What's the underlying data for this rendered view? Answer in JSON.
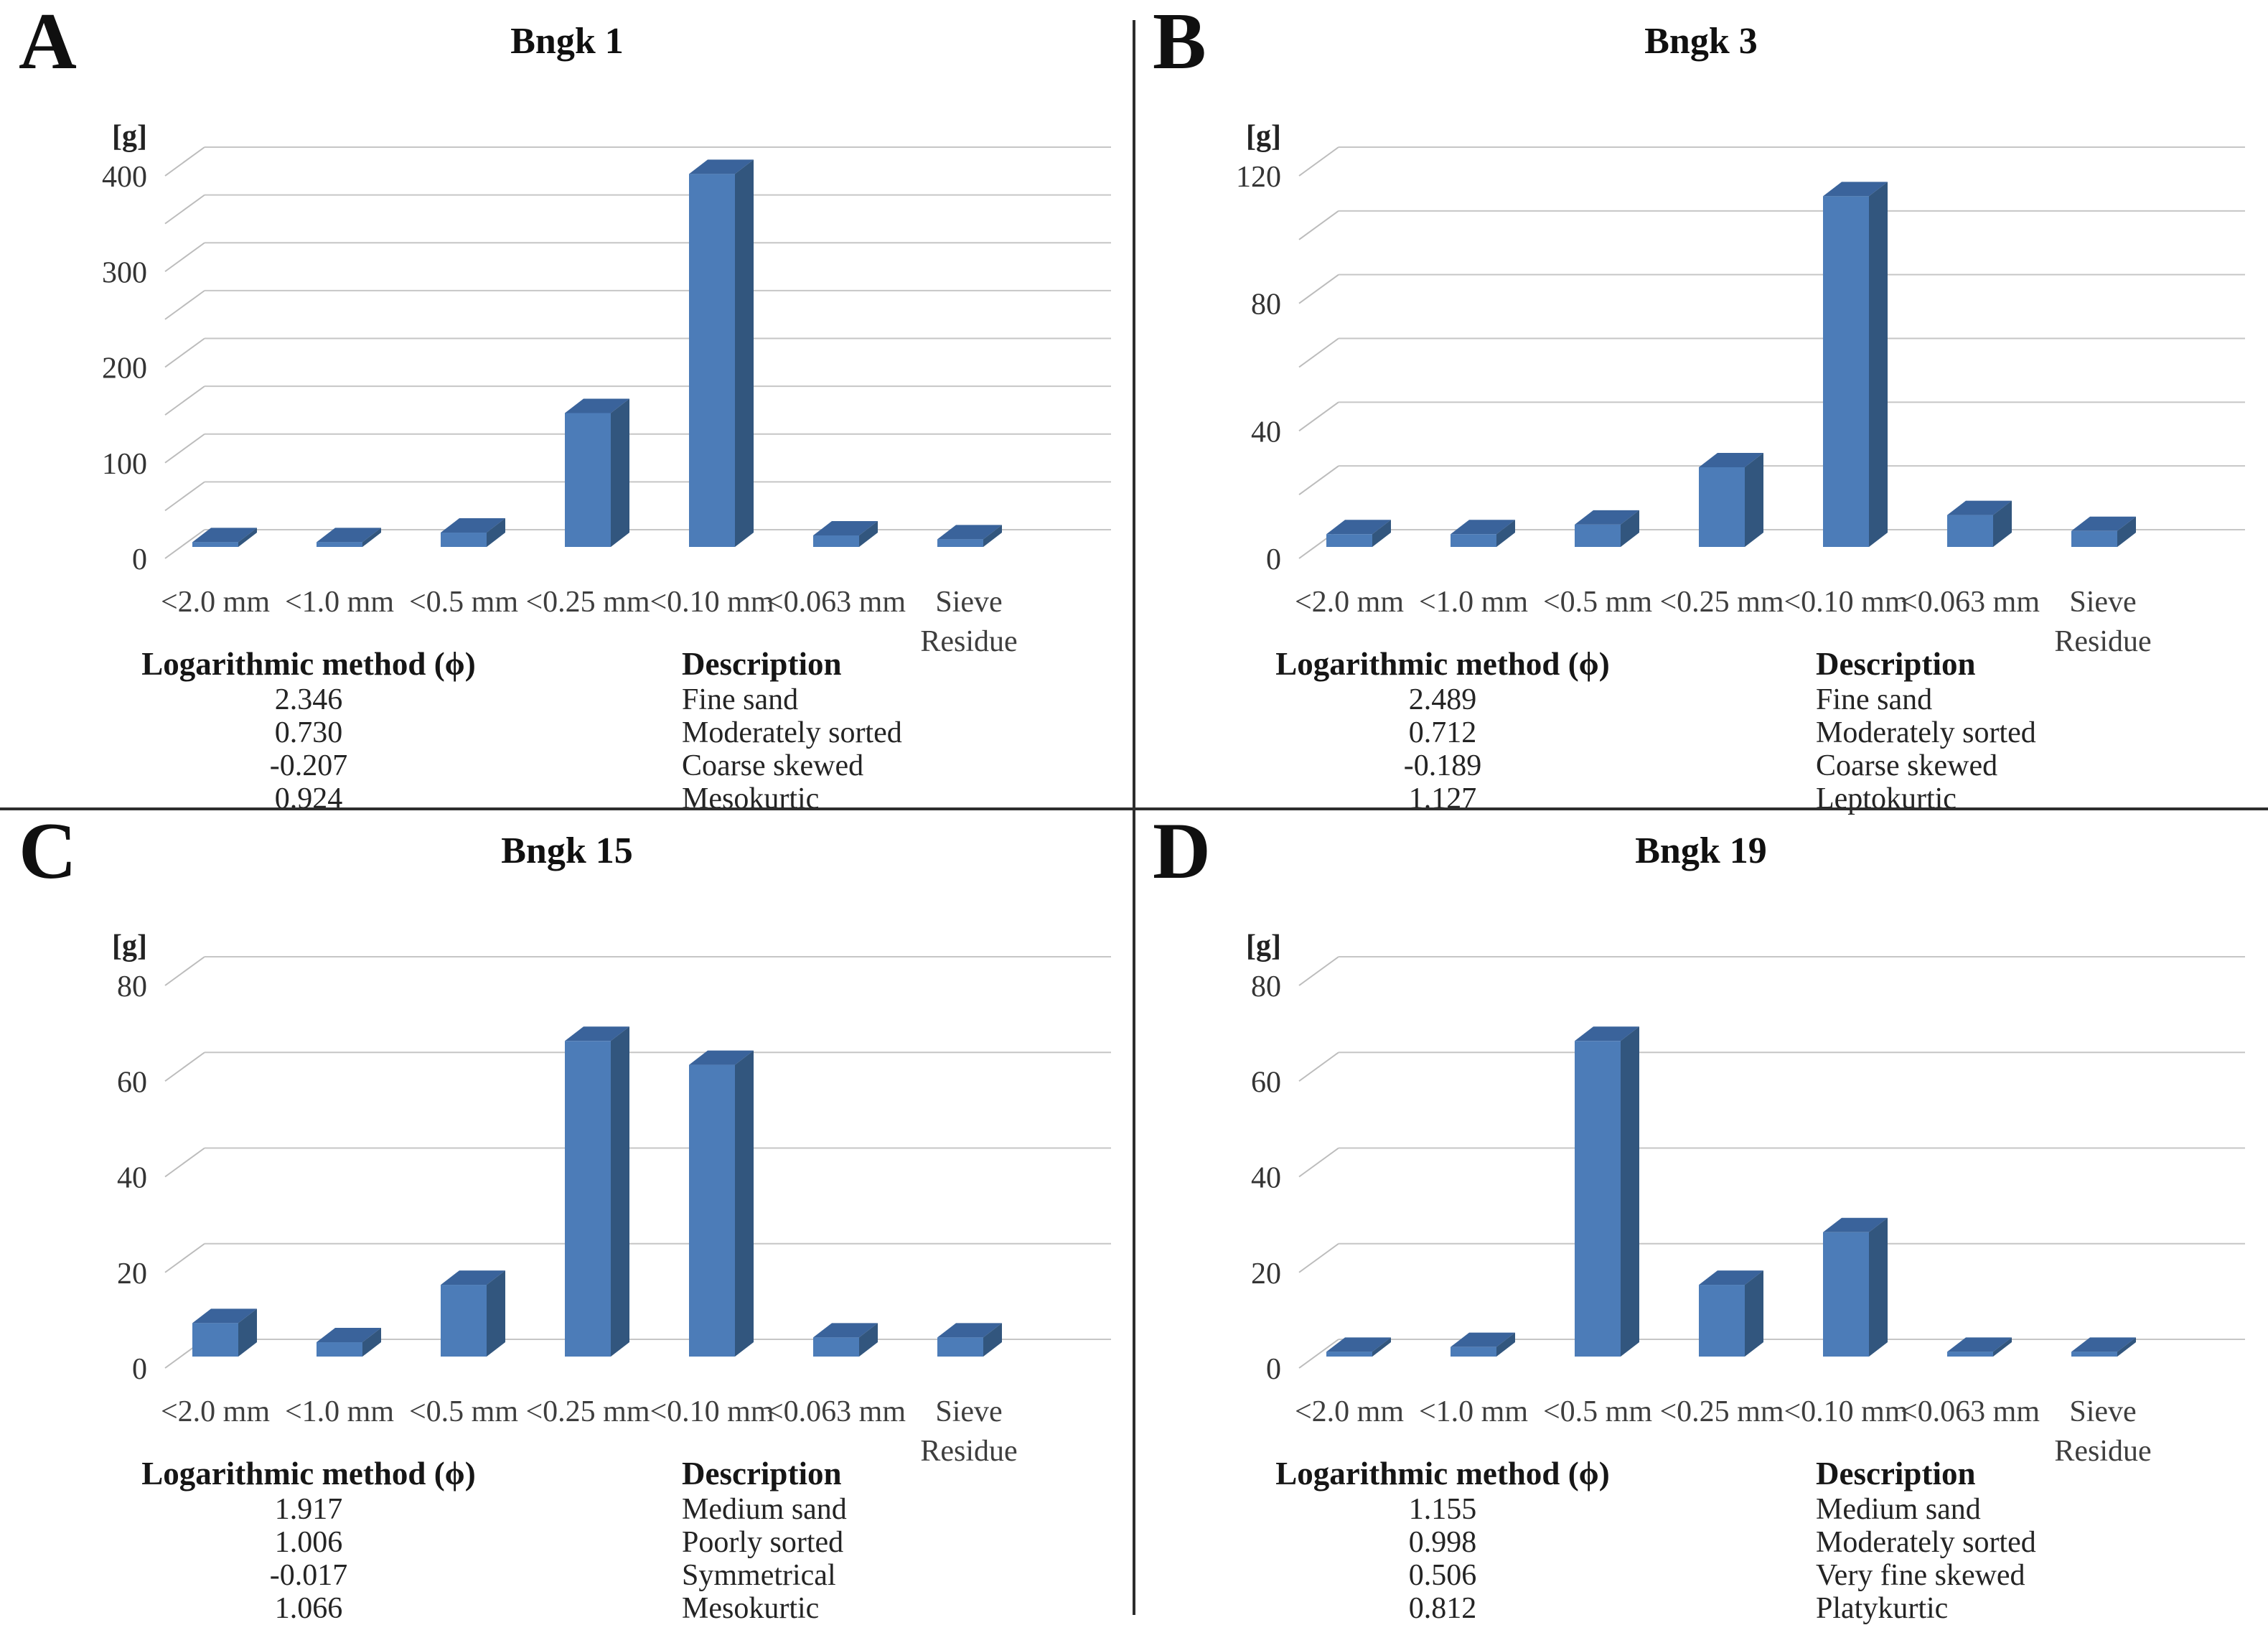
{
  "figure_label": "Grain size distribution panels",
  "colors": {
    "bar_front": "#4c7cb8",
    "bar_top": "#3a639b",
    "bar_side": "#32567e",
    "gridline": "#c6c6c6",
    "grid_diagonal": "#bcbcbc",
    "divider": "#2d2d2d"
  },
  "chart_data": [
    {
      "type": "bar",
      "panel": "A",
      "title": "Bngk 1",
      "ylabel": "[g]",
      "categories": [
        "<2.0 mm",
        "<1.0 mm",
        "<0.5 mm",
        "<0.25 mm",
        "<0.10 mm",
        "<0.063 mm",
        "Sieve Residue"
      ],
      "values": [
        5,
        5,
        15,
        140,
        390,
        12,
        8
      ],
      "ylim": [
        0,
        400
      ],
      "grid_step": 50,
      "label_step": 100,
      "tick_labels": [
        "0",
        "100",
        "200",
        "300",
        "400"
      ],
      "legend": "none",
      "grid": "on",
      "stats": {
        "method_label": "Logarithmic method (ϕ)",
        "description_label": "Description",
        "values": [
          "2.346",
          "0.730",
          "-0.207",
          "0.924"
        ],
        "descriptions": [
          "Fine sand",
          "Moderately sorted",
          "Coarse skewed",
          "Mesokurtic"
        ]
      }
    },
    {
      "type": "bar",
      "panel": "B",
      "title": "Bngk 3",
      "ylabel": "[g]",
      "categories": [
        "<2.0 mm",
        "<1.0 mm",
        "<0.5 mm",
        "<0.25 mm",
        "<0.10 mm",
        "<0.063 mm",
        "Sieve Residue"
      ],
      "values": [
        4,
        4,
        7,
        25,
        110,
        10,
        5
      ],
      "ylim": [
        0,
        120
      ],
      "grid_step": 20,
      "label_step": 40,
      "tick_labels": [
        "0",
        "40",
        "80",
        "120"
      ],
      "legend": "none",
      "grid": "on",
      "stats": {
        "method_label": "Logarithmic method (ϕ)",
        "description_label": "Description",
        "values": [
          "2.489",
          "0.712",
          "-0.189",
          "1.127"
        ],
        "descriptions": [
          "Fine sand",
          "Moderately sorted",
          "Coarse skewed",
          "Leptokurtic"
        ]
      }
    },
    {
      "type": "bar",
      "panel": "C",
      "title": "Bngk 15",
      "ylabel": "[g]",
      "categories": [
        "<2.0 mm",
        "<1.0 mm",
        "<0.5 mm",
        "<0.25 mm",
        "<0.10 mm",
        "<0.063 mm",
        "Sieve Residue"
      ],
      "values": [
        7,
        3,
        15,
        66,
        61,
        4,
        4
      ],
      "ylim": [
        0,
        80
      ],
      "grid_step": 20,
      "label_step": 20,
      "tick_labels": [
        "0",
        "20",
        "40",
        "60",
        "80"
      ],
      "legend": "none",
      "grid": "on",
      "stats": {
        "method_label": "Logarithmic method (ϕ)",
        "description_label": "Description",
        "values": [
          "1.917",
          "1.006",
          "-0.017",
          "1.066"
        ],
        "descriptions": [
          "Medium sand",
          "Poorly sorted",
          "Symmetrical",
          "Mesokurtic"
        ]
      }
    },
    {
      "type": "bar",
      "panel": "D",
      "title": "Bngk 19",
      "ylabel": "[g]",
      "categories": [
        "<2.0 mm",
        "<1.0 mm",
        "<0.5 mm",
        "<0.25 mm",
        "<0.10 mm",
        "<0.063 mm",
        "Sieve Residue"
      ],
      "values": [
        1,
        2,
        66,
        15,
        26,
        1,
        1
      ],
      "ylim": [
        0,
        80
      ],
      "grid_step": 20,
      "label_step": 20,
      "tick_labels": [
        "0",
        "20",
        "40",
        "60",
        "80"
      ],
      "legend": "none",
      "grid": "on",
      "stats": {
        "method_label": "Logarithmic method (ϕ)",
        "description_label": "Description",
        "values": [
          "1.155",
          "0.998",
          "0.506",
          "0.812"
        ],
        "descriptions": [
          "Medium sand",
          "Moderately sorted",
          "Very fine skewed",
          "Platykurtic"
        ]
      }
    }
  ]
}
